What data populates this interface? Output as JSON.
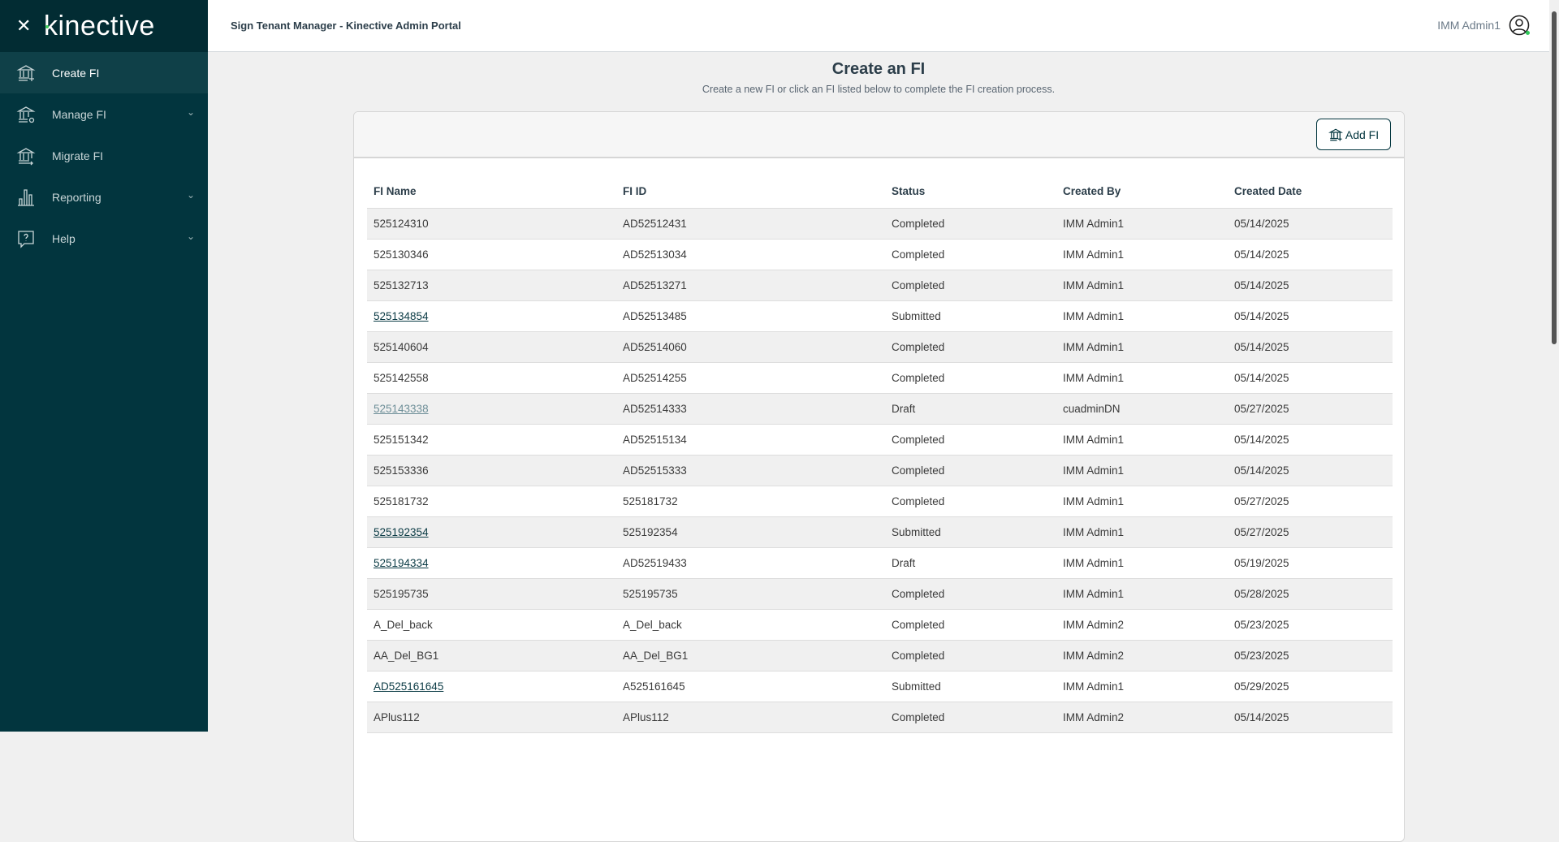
{
  "sidebar": {
    "brand": "kinective",
    "items": [
      {
        "label": "Create FI",
        "icon": "bank-plus-icon",
        "active": true,
        "expandable": false
      },
      {
        "label": "Manage FI",
        "icon": "bank-gear-icon",
        "active": false,
        "expandable": true
      },
      {
        "label": "Migrate FI",
        "icon": "bank-arrow-icon",
        "active": false,
        "expandable": false
      },
      {
        "label": "Reporting",
        "icon": "bar-chart-icon",
        "active": false,
        "expandable": true
      },
      {
        "label": "Help",
        "icon": "help-bubble-icon",
        "active": false,
        "expandable": true
      }
    ]
  },
  "header": {
    "title": "Sign Tenant Manager - Kinective Admin Portal",
    "user": "IMM Admin1"
  },
  "main": {
    "title": "Create an FI",
    "subtitle": "Create a new FI or click an FI listed below to complete the FI creation process.",
    "add_label": "Add FI",
    "columns": [
      "FI Name",
      "FI ID",
      "Status",
      "Created By",
      "Created Date"
    ],
    "rows": [
      {
        "name": "525124310",
        "id": "AD52512431",
        "status": "Completed",
        "by": "IMM Admin1",
        "date": "05/14/2025",
        "link": ""
      },
      {
        "name": "525130346",
        "id": "AD52513034",
        "status": "Completed",
        "by": "IMM Admin1",
        "date": "05/14/2025",
        "link": ""
      },
      {
        "name": "525132713",
        "id": "AD52513271",
        "status": "Completed",
        "by": "IMM Admin1",
        "date": "05/14/2025",
        "link": ""
      },
      {
        "name": "525134854",
        "id": "AD52513485",
        "status": "Submitted",
        "by": "IMM Admin1",
        "date": "05/14/2025",
        "link": "link"
      },
      {
        "name": "525140604",
        "id": "AD52514060",
        "status": "Completed",
        "by": "IMM Admin1",
        "date": "05/14/2025",
        "link": ""
      },
      {
        "name": "525142558",
        "id": "AD52514255",
        "status": "Completed",
        "by": "IMM Admin1",
        "date": "05/14/2025",
        "link": ""
      },
      {
        "name": "525143338",
        "id": "AD52514333",
        "status": "Draft",
        "by": "cuadminDN",
        "date": "05/27/2025",
        "link": "muted"
      },
      {
        "name": "525151342",
        "id": "AD52515134",
        "status": "Completed",
        "by": "IMM Admin1",
        "date": "05/14/2025",
        "link": ""
      },
      {
        "name": "525153336",
        "id": "AD52515333",
        "status": "Completed",
        "by": "IMM Admin1",
        "date": "05/14/2025",
        "link": ""
      },
      {
        "name": "525181732",
        "id": "525181732",
        "status": "Completed",
        "by": "IMM Admin1",
        "date": "05/27/2025",
        "link": ""
      },
      {
        "name": "525192354",
        "id": "525192354",
        "status": "Submitted",
        "by": "IMM Admin1",
        "date": "05/27/2025",
        "link": "link"
      },
      {
        "name": "525194334",
        "id": "AD52519433",
        "status": "Draft",
        "by": "IMM Admin1",
        "date": "05/19/2025",
        "link": "link"
      },
      {
        "name": "525195735",
        "id": "525195735",
        "status": "Completed",
        "by": "IMM Admin1",
        "date": "05/28/2025",
        "link": ""
      },
      {
        "name": "A_Del_back",
        "id": "A_Del_back",
        "status": "Completed",
        "by": "IMM Admin2",
        "date": "05/23/2025",
        "link": ""
      },
      {
        "name": "AA_Del_BG1",
        "id": "AA_Del_BG1",
        "status": "Completed",
        "by": "IMM Admin2",
        "date": "05/23/2025",
        "link": ""
      },
      {
        "name": "AD525161645",
        "id": "A525161645",
        "status": "Submitted",
        "by": "IMM Admin1",
        "date": "05/29/2025",
        "link": "link"
      },
      {
        "name": "APlus112",
        "id": "APlus112",
        "status": "Completed",
        "by": "IMM Admin2",
        "date": "05/14/2025",
        "link": ""
      }
    ]
  },
  "colors": {
    "sidebar": "#02353e",
    "active": "#0f4048",
    "accent": "#3ecf5c",
    "link": "#0b3b45"
  }
}
